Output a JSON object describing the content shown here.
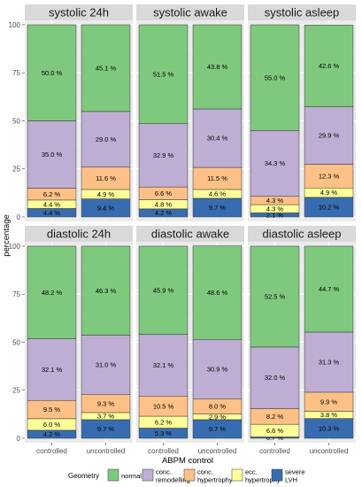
{
  "chart_data": {
    "type": "bar",
    "stacked": true,
    "xlabel": "ABPM control",
    "ylabel": "percentage",
    "ylim": [
      0,
      100
    ],
    "yticks": [
      0,
      25,
      50,
      75,
      100
    ],
    "grid": true,
    "legend_position": "bottom",
    "legend_title": "Geometry",
    "categories": [
      "controlled",
      "uncontrolled"
    ],
    "stack_order": [
      "severe LVH",
      "ecc. hypertrophy",
      "conc. hypertrophy",
      "conc. remodelling",
      "normal"
    ],
    "legend": [
      {
        "key": "normal",
        "lines": [
          "normal"
        ],
        "color": "#7fc97f"
      },
      {
        "key": "conc. remodelling",
        "lines": [
          "conc.",
          "remodelling"
        ],
        "color": "#beaed4"
      },
      {
        "key": "conc. hypertrophy",
        "lines": [
          "conc.",
          "hypertrophy"
        ],
        "color": "#fdc086"
      },
      {
        "key": "ecc. hypertrophy",
        "lines": [
          "ecc.",
          "hypertrophy"
        ],
        "color": "#ffff99"
      },
      {
        "key": "severe LVH",
        "lines": [
          "severe",
          "LVH"
        ],
        "color": "#386cb0"
      }
    ],
    "panels": [
      {
        "title": "systolic 24h",
        "bars": [
          {
            "category": "controlled",
            "values": [
              4.4,
              4.4,
              6.2,
              35.0,
              50.0
            ],
            "labels": [
              "4.4 %",
              "4.4 %",
              "6.2 %",
              "35.0 %",
              "50.0 %"
            ]
          },
          {
            "category": "uncontrolled",
            "values": [
              9.4,
              4.9,
              11.6,
              29.0,
              45.1
            ],
            "labels": [
              "9.4 %",
              "4.9 %",
              "11.6 %",
              "29.0 %",
              "45.1 %"
            ]
          }
        ]
      },
      {
        "title": "systolic awake",
        "bars": [
          {
            "category": "controlled",
            "values": [
              4.2,
              4.8,
              6.6,
              32.9,
              51.5
            ],
            "labels": [
              "4.2 %",
              "4.8 %",
              "6.6 %",
              "32.9 %",
              "51.5 %"
            ]
          },
          {
            "category": "uncontrolled",
            "values": [
              9.7,
              4.6,
              11.5,
              30.4,
              43.8
            ],
            "labels": [
              "9.7 %",
              "4.6 %",
              "11.5 %",
              "30.4 %",
              "43.8 %"
            ]
          }
        ]
      },
      {
        "title": "systolic asleep",
        "bars": [
          {
            "category": "controlled",
            "values": [
              2.1,
              4.3,
              4.3,
              34.3,
              55.0
            ],
            "labels": [
              "2.1 %",
              "4.3 %",
              "4.3 %",
              "34.3 %",
              "55.0 %"
            ]
          },
          {
            "category": "uncontrolled",
            "values": [
              10.2,
              4.9,
              12.3,
              29.9,
              42.6
            ],
            "labels": [
              "10.2 %",
              "4.9 %",
              "12.3 %",
              "29.9 %",
              "42.6 %"
            ]
          }
        ]
      },
      {
        "title": "diastolic 24h",
        "bars": [
          {
            "category": "controlled",
            "values": [
              4.2,
              6.0,
              9.5,
              32.1,
              48.2
            ],
            "labels": [
              "4.2 %",
              "6.0 %",
              "9.5 %",
              "32.1 %",
              "48.2 %"
            ]
          },
          {
            "category": "uncontrolled",
            "values": [
              9.7,
              3.7,
              9.3,
              31.0,
              46.3
            ],
            "labels": [
              "9.7 %",
              "3.7 %",
              "9.3 %",
              "31.0 %",
              "46.3 %"
            ]
          }
        ]
      },
      {
        "title": "diastolic awake",
        "bars": [
          {
            "category": "controlled",
            "values": [
              5.3,
              6.2,
              10.5,
              32.1,
              45.9
            ],
            "labels": [
              "5.3 %",
              "6.2 %",
              "10.5 %",
              "32.1 %",
              "45.9 %"
            ]
          },
          {
            "category": "uncontrolled",
            "values": [
              9.7,
              2.9,
              8.0,
              30.9,
              48.6
            ],
            "labels": [
              "9.7 %",
              "2.9 %",
              "8.0 %",
              "30.9 %",
              "48.6 %"
            ]
          }
        ]
      },
      {
        "title": "diastolic asleep",
        "bars": [
          {
            "category": "controlled",
            "values": [
              0.7,
              6.6,
              8.2,
              32.0,
              52.5
            ],
            "labels": [
              "0.7 %",
              "6.6 %",
              "8.2 %",
              "32.0 %",
              "52.5 %"
            ]
          },
          {
            "category": "uncontrolled",
            "values": [
              10.3,
              3.8,
              9.9,
              31.3,
              44.7
            ],
            "labels": [
              "10.3 %",
              "3.8 %",
              "9.9 %",
              "31.3 %",
              "44.7 %"
            ]
          }
        ]
      }
    ]
  }
}
